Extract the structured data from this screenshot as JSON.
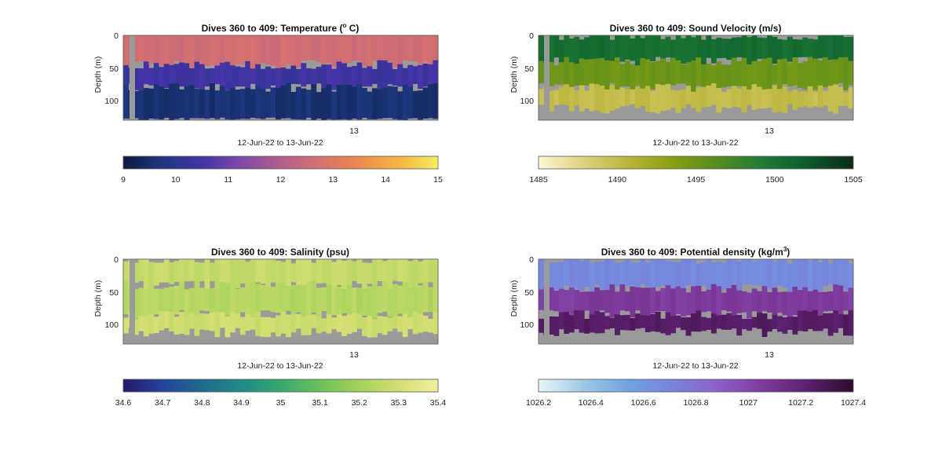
{
  "chart_data": [
    {
      "type": "heatmap",
      "variable": "temperature",
      "title": "Dives 360 to 409: Temperature (",
      "title_sup": "o",
      "title_tail": " C)",
      "ylabel": "Depth (m)",
      "xlabel": "12-Jun-22 to 13-Jun-22",
      "x_tick_labels": [
        "13"
      ],
      "y_tick_labels": [
        "0",
        "50",
        "100"
      ],
      "ylim": [
        0,
        130
      ],
      "colorbar": {
        "min": 9,
        "max": 15,
        "ticks": [
          "9",
          "10",
          "11",
          "12",
          "13",
          "14",
          "15"
        ]
      },
      "colormap": [
        "#0d1b3e",
        "#1d3780",
        "#4433a6",
        "#7e4aa8",
        "#b25f8c",
        "#d6716e",
        "#ee8a4f",
        "#f6b441",
        "#f2ef5c"
      ],
      "layers": [
        {
          "depth_range_m": [
            0,
            45
          ],
          "value": 12.6
        },
        {
          "depth_range_m": [
            45,
            80
          ],
          "value": 10.4
        },
        {
          "depth_range_m": [
            80,
            130
          ],
          "value": 9.6
        }
      ]
    },
    {
      "type": "heatmap",
      "variable": "sound_velocity",
      "title": "Dives 360 to 409: Sound Velocity (m/s)",
      "ylabel": "Depth (m)",
      "xlabel": "12-Jun-22 to 13-Jun-22",
      "x_tick_labels": [
        "13"
      ],
      "y_tick_labels": [
        "0",
        "50",
        "100"
      ],
      "ylim": [
        0,
        130
      ],
      "colorbar": {
        "min": 1485,
        "max": 1505,
        "ticks": [
          "1485",
          "1490",
          "1495",
          "1500",
          "1505"
        ]
      },
      "colormap": [
        "#fcf7d2",
        "#ddd27f",
        "#b9b53a",
        "#889e12",
        "#548c20",
        "#1e7a35",
        "#0b5b2d",
        "#0d2a18"
      ],
      "layers": [
        {
          "depth_range_m": [
            0,
            40
          ],
          "value": 1500.5
        },
        {
          "depth_range_m": [
            40,
            80
          ],
          "value": 1495
        },
        {
          "depth_range_m": [
            80,
            130
          ],
          "value": 1490
        }
      ]
    },
    {
      "type": "heatmap",
      "variable": "salinity",
      "title": "Dives 360 to 409: Salinity (psu)",
      "ylabel": "Depth (m)",
      "xlabel": "12-Jun-22 to 13-Jun-22",
      "x_tick_labels": [
        "13"
      ],
      "y_tick_labels": [
        "0",
        "50",
        "100"
      ],
      "ylim": [
        0,
        130
      ],
      "colorbar": {
        "min": 34.6,
        "max": 35.4,
        "ticks": [
          "34.6",
          "34.7",
          "34.8",
          "34.9",
          "35",
          "35.1",
          "35.2",
          "35.3",
          "35.4"
        ]
      },
      "colormap": [
        "#27186b",
        "#23439a",
        "#1f6b8f",
        "#1f8b86",
        "#35a86f",
        "#6cc25a",
        "#a4d25a",
        "#d4de73",
        "#f3ee9c"
      ],
      "layers": [
        {
          "depth_range_m": [
            0,
            40
          ],
          "value": 35.27
        },
        {
          "depth_range_m": [
            40,
            85
          ],
          "value": 35.24
        },
        {
          "depth_range_m": [
            85,
            130
          ],
          "value": 35.29
        }
      ]
    },
    {
      "type": "heatmap",
      "variable": "potential_density",
      "title": "Dives 360 to 409: Potential density (kg/m",
      "title_sup": "3",
      "title_tail": ")",
      "ylabel": "Depth (m)",
      "xlabel": "12-Jun-22 to 13-Jun-22",
      "x_tick_labels": [
        "13"
      ],
      "y_tick_labels": [
        "0",
        "50",
        "100"
      ],
      "ylim": [
        0,
        130
      ],
      "colorbar": {
        "min": 1026.2,
        "max": 1027.4,
        "ticks": [
          "1026.2",
          "1026.4",
          "1026.6",
          "1026.8",
          "1027",
          "1027.2",
          "1027.4"
        ]
      },
      "colormap": [
        "#eaf6f7",
        "#9dc9e5",
        "#6fa3e0",
        "#7882dc",
        "#8c5fc9",
        "#7e3a9c",
        "#5b1f6e",
        "#2d0c2e"
      ],
      "layers": [
        {
          "depth_range_m": [
            0,
            45
          ],
          "value": 1026.68
        },
        {
          "depth_range_m": [
            45,
            85
          ],
          "value": 1027.05
        },
        {
          "depth_range_m": [
            85,
            130
          ],
          "value": 1027.25
        }
      ]
    }
  ]
}
